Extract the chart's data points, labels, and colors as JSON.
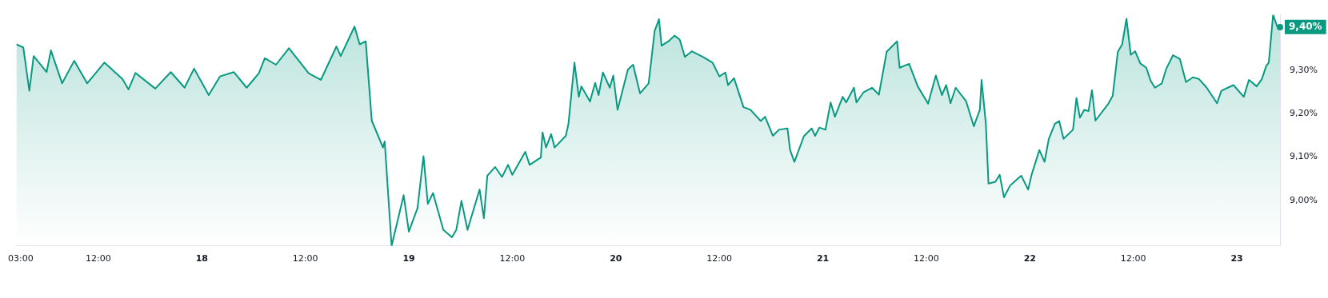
{
  "chart_data": {
    "type": "area",
    "color": "#089981",
    "x": [
      "--03-17T02:30",
      "--03-17T03:18",
      "--03-17T04:00",
      "--03-17T04:30",
      "--03-17T06:00",
      "--03-17T06:30",
      "--03-17T07:48",
      "--03-17T09:12",
      "--03-17T10:42",
      "--03-17T12:42",
      "--03-17T14:48",
      "--03-17T15:30",
      "--03-17T16:18",
      "--03-17T18:36",
      "--03-17T20:24",
      "--03-17T22:00",
      "--03-17T23:06",
      "--03-18T00:48",
      "--03-18T02:06",
      "--03-18T03:42",
      "--03-18T05:12",
      "--03-18T06:36",
      "--03-18T07:18",
      "--03-18T08:36",
      "--03-18T10:06",
      "--03-18T12:24",
      "--03-18T13:48",
      "--03-18T15:36",
      "--03-18T16:06",
      "--03-18T17:42",
      "--03-18T18:18",
      "--03-18T19:00",
      "--03-18T19:42",
      "--03-18T21:00",
      "--03-18T21:12",
      "--03-18T22:00",
      "--03-18T23:24",
      "--03-19T00:00",
      "--03-19T01:00",
      "--03-19T01:42",
      "--03-19T02:12",
      "--03-19T02:48",
      "--03-19T04:00",
      "--03-19T05:00",
      "--03-19T05:30",
      "--03-19T06:06",
      "--03-19T06:48",
      "--03-19T08:12",
      "--03-19T08:42",
      "--03-19T09:06",
      "--03-19T10:00",
      "--03-19T10:48",
      "--03-19T11:30",
      "--03-19T12:00",
      "--03-19T13:30",
      "--03-19T14:00",
      "--03-19T15:18",
      "--03-19T15:30",
      "--03-19T15:54",
      "--03-19T16:30",
      "--03-19T16:54",
      "--03-19T18:12",
      "--03-19T18:30",
      "--03-19T19:12",
      "--03-19T19:42",
      "--03-19T20:00",
      "--03-19T21:00",
      "--03-19T21:36",
      "--03-19T22:00",
      "--03-19T22:30",
      "--03-19T23:18",
      "--03-19T23:42",
      "--03-20T00:12",
      "--03-20T01:24",
      "--03-20T02:00",
      "--03-20T02:48",
      "--03-20T03:48",
      "--03-20T04:30",
      "--03-20T05:00",
      "--03-20T05:18",
      "--03-20T06:06",
      "--03-20T06:48",
      "--03-20T07:24",
      "--03-20T08:00",
      "--03-20T08:48",
      "--03-20T10:12",
      "--03-20T11:12",
      "--03-20T12:00",
      "--03-20T12:42",
      "--03-20T13:00",
      "--03-20T13:42",
      "--03-20T14:48",
      "--03-20T15:36",
      "--03-20T16:48",
      "--03-20T17:18",
      "--03-20T18:12",
      "--03-20T18:54",
      "--03-20T19:54",
      "--03-20T20:12",
      "--03-20T20:42",
      "--03-20T21:48",
      "--03-20T22:42",
      "--03-20T23:06",
      "--03-20T23:36",
      "--03-21T00:18",
      "--03-21T00:54",
      "--03-21T01:24",
      "--03-21T02:18",
      "--03-21T02:42",
      "--03-21T03:36",
      "--03-21T03:54",
      "--03-21T04:42",
      "--03-21T05:42",
      "--03-21T06:30",
      "--03-21T07:24",
      "--03-21T08:36",
      "--03-21T08:54",
      "--03-21T10:00",
      "--03-21T11:00",
      "--03-21T12:12",
      "--03-21T13:06",
      "--03-21T13:48",
      "--03-21T14:18",
      "--03-21T14:48",
      "--03-21T15:24",
      "--03-21T16:36",
      "--03-21T17:30",
      "--03-21T18:12",
      "--03-21T18:24",
      "--03-21T18:54",
      "--03-21T19:12",
      "--03-21T20:00",
      "--03-21T20:30",
      "--03-21T21:00",
      "--03-21T21:42",
      "--03-21T22:18",
      "--03-21T23:00",
      "--03-21T23:48",
      "--03-22T00:12",
      "--03-22T01:06",
      "--03-22T01:42",
      "--03-22T02:12",
      "--03-22T02:54",
      "--03-22T03:24",
      "--03-22T03:54",
      "--03-22T05:00",
      "--03-22T05:24",
      "--03-22T05:48",
      "--03-22T06:18",
      "--03-22T06:48",
      "--03-22T07:12",
      "--03-22T07:36",
      "--03-22T09:06",
      "--03-22T09:36",
      "--03-22T10:12",
      "--03-22T10:42",
      "--03-22T11:12",
      "--03-22T11:42",
      "--03-22T12:12",
      "--03-22T12:48",
      "--03-22T13:30",
      "--03-22T14:00",
      "--03-22T14:30",
      "--03-22T15:18",
      "--03-22T15:48",
      "--03-22T16:36",
      "--03-22T17:24",
      "--03-22T18:06",
      "--03-22T18:54",
      "--03-22T19:36",
      "--03-22T20:30",
      "--03-22T21:42",
      "--03-22T22:12",
      "--03-22T23:36",
      "--03-23T00:48",
      "--03-23T01:24",
      "--03-23T02:18",
      "--03-23T02:54",
      "--03-23T03:24",
      "--03-23T03:42",
      "--03-23T04:12",
      "--03-23T04:42",
      "--03-23T05:00"
    ],
    "values": [
      9.36,
      9.353,
      9.253,
      9.333,
      9.296,
      9.346,
      9.27,
      9.322,
      9.27,
      9.318,
      9.28,
      9.256,
      9.294,
      9.258,
      9.296,
      9.26,
      9.304,
      9.243,
      9.286,
      9.296,
      9.26,
      9.293,
      9.328,
      9.313,
      9.351,
      9.293,
      9.278,
      9.355,
      9.333,
      9.401,
      9.36,
      9.367,
      9.184,
      9.122,
      9.136,
      8.895,
      9.012,
      8.928,
      8.982,
      9.102,
      8.992,
      9.017,
      8.932,
      8.915,
      8.932,
      8.999,
      8.932,
      9.025,
      8.959,
      9.057,
      9.077,
      9.054,
      9.082,
      9.059,
      9.112,
      9.082,
      9.099,
      9.157,
      9.122,
      9.153,
      9.122,
      9.149,
      9.176,
      9.318,
      9.239,
      9.263,
      9.228,
      9.271,
      9.243,
      9.295,
      9.26,
      9.288,
      9.209,
      9.302,
      9.313,
      9.247,
      9.27,
      9.391,
      9.418,
      9.357,
      9.367,
      9.38,
      9.371,
      9.331,
      9.344,
      9.33,
      9.318,
      9.286,
      9.295,
      9.266,
      9.282,
      9.215,
      9.209,
      9.183,
      9.193,
      9.149,
      9.163,
      9.166,
      9.116,
      9.089,
      9.148,
      9.166,
      9.149,
      9.168,
      9.163,
      9.226,
      9.193,
      9.239,
      9.226,
      9.26,
      9.226,
      9.249,
      9.26,
      9.244,
      9.343,
      9.367,
      9.306,
      9.315,
      9.263,
      9.223,
      9.288,
      9.243,
      9.266,
      9.224,
      9.26,
      9.229,
      9.171,
      9.209,
      9.278,
      9.176,
      9.039,
      9.043,
      9.059,
      9.007,
      9.034,
      9.045,
      9.057,
      9.025,
      9.059,
      9.116,
      9.089,
      9.142,
      9.177,
      9.183,
      9.142,
      9.163,
      9.236,
      9.191,
      9.209,
      9.206,
      9.254,
      9.184,
      9.223,
      9.241,
      9.343,
      9.36,
      9.419,
      9.336,
      9.344,
      9.316,
      9.306,
      9.276,
      9.26,
      9.27,
      9.303,
      9.335,
      9.326,
      9.273,
      9.284,
      9.28,
      9.26,
      9.224,
      9.253,
      9.266,
      9.239,
      9.278,
      9.263,
      9.28,
      9.31,
      9.318,
      9.428,
      9.4,
      9.4
    ],
    "xlim": [
      "--03-17T02:30",
      "--03-23T05:00"
    ],
    "ylim": [
      8.895,
      9.428
    ],
    "xticks": [
      {
        "value": "--03-17T03:00",
        "label": "03:00"
      },
      {
        "value": "--03-17T12:00",
        "label": "12:00"
      },
      {
        "value": "--03-18",
        "label": "18"
      },
      {
        "value": "--03-18T12:00",
        "label": "12:00"
      },
      {
        "value": "--03-19",
        "label": "19"
      },
      {
        "value": "--03-19T12:00",
        "label": "12:00"
      },
      {
        "value": "--03-20",
        "label": "20"
      },
      {
        "value": "--03-20T12:00",
        "label": "12:00"
      },
      {
        "value": "--03-21",
        "label": "21"
      },
      {
        "value": "--03-21T12:00",
        "label": "12:00"
      },
      {
        "value": "--03-22",
        "label": "22"
      },
      {
        "value": "--03-22T12:00",
        "label": "12:00"
      },
      {
        "value": "--03-23",
        "label": "23"
      }
    ],
    "yticks": [
      {
        "value": 9.0,
        "label": "9,00%"
      },
      {
        "value": 9.1,
        "label": "9,10%"
      },
      {
        "value": 9.2,
        "label": "9,20%"
      },
      {
        "value": 9.3,
        "label": "9,30%"
      }
    ],
    "annotations": [
      {
        "text": "9,40%",
        "x": "--03-23T05:00",
        "y": 9.4
      }
    ]
  }
}
